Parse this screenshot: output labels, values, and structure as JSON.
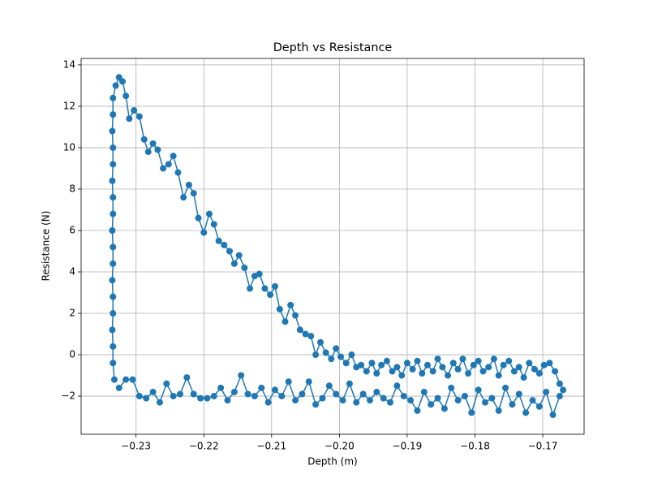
{
  "chart_data": {
    "type": "line",
    "title": "Depth vs Resistance",
    "xlabel": "Depth (m)",
    "ylabel": "Resistance (N)",
    "color": "#1f77b4",
    "grid": true,
    "markers": true,
    "xlim": [
      -0.2381,
      -0.1639
    ],
    "ylim": [
      -3.84,
      14.31
    ],
    "xticks": [
      {
        "value": -0.23,
        "label": "−0.23"
      },
      {
        "value": -0.22,
        "label": "−0.22"
      },
      {
        "value": -0.21,
        "label": "−0.21"
      },
      {
        "value": -0.2,
        "label": "−0.20"
      },
      {
        "value": -0.19,
        "label": "−0.19"
      },
      {
        "value": -0.18,
        "label": "−0.18"
      },
      {
        "value": -0.17,
        "label": "−0.17"
      }
    ],
    "yticks": [
      {
        "value": -2,
        "label": "−2"
      },
      0,
      2,
      4,
      6,
      8,
      10,
      12,
      14
    ],
    "x": [
      -0.2332,
      -0.2334,
      -0.2334,
      -0.2335,
      -0.2334,
      -0.2334,
      -0.2335,
      -0.2334,
      -0.2334,
      -0.2335,
      -0.2334,
      -0.2334,
      -0.2335,
      -0.2334,
      -0.2334,
      -0.2335,
      -0.2334,
      -0.2334,
      -0.233,
      -0.2325,
      -0.232,
      -0.2315,
      -0.231,
      -0.2303,
      -0.2295,
      -0.2288,
      -0.2282,
      -0.2275,
      -0.2268,
      -0.226,
      -0.2252,
      -0.2245,
      -0.2238,
      -0.223,
      -0.2222,
      -0.2215,
      -0.2208,
      -0.22,
      -0.2192,
      -0.2185,
      -0.2178,
      -0.217,
      -0.2162,
      -0.2155,
      -0.2148,
      -0.214,
      -0.2132,
      -0.2125,
      -0.2118,
      -0.211,
      -0.2102,
      -0.2095,
      -0.2088,
      -0.208,
      -0.2072,
      -0.2065,
      -0.2058,
      -0.205,
      -0.2042,
      -0.2035,
      -0.2028,
      -0.202,
      -0.2012,
      -0.2005,
      -0.1998,
      -0.199,
      -0.1982,
      -0.1975,
      -0.1968,
      -0.196,
      -0.1952,
      -0.1945,
      -0.1938,
      -0.193,
      -0.1922,
      -0.1915,
      -0.1908,
      -0.19,
      -0.1892,
      -0.1885,
      -0.1878,
      -0.187,
      -0.1862,
      -0.1855,
      -0.1848,
      -0.184,
      -0.1832,
      -0.1825,
      -0.1818,
      -0.181,
      -0.1802,
      -0.1795,
      -0.1788,
      -0.178,
      -0.1772,
      -0.1765,
      -0.1758,
      -0.175,
      -0.1742,
      -0.1735,
      -0.1728,
      -0.172,
      -0.1712,
      -0.1705,
      -0.1698,
      -0.169,
      -0.1682,
      -0.1675,
      -0.167,
      -0.1675,
      -0.1685,
      -0.1695,
      -0.1705,
      -0.1715,
      -0.1725,
      -0.1735,
      -0.1745,
      -0.1755,
      -0.1765,
      -0.1775,
      -0.1785,
      -0.1795,
      -0.1805,
      -0.1815,
      -0.1825,
      -0.1835,
      -0.1845,
      -0.1855,
      -0.1865,
      -0.1875,
      -0.1885,
      -0.1895,
      -0.1905,
      -0.1915,
      -0.1925,
      -0.1935,
      -0.1945,
      -0.1955,
      -0.1965,
      -0.1975,
      -0.1985,
      -0.1995,
      -0.2005,
      -0.2015,
      -0.2025,
      -0.2035,
      -0.2045,
      -0.2055,
      -0.2065,
      -0.2075,
      -0.2085,
      -0.2095,
      -0.2105,
      -0.2115,
      -0.2125,
      -0.2135,
      -0.2145,
      -0.2155,
      -0.2165,
      -0.2175,
      -0.2185,
      -0.2195,
      -0.2205,
      -0.2215,
      -0.2225,
      -0.2235,
      -0.2245,
      -0.2255,
      -0.2265,
      -0.2275,
      -0.2285,
      -0.2295,
      -0.2305,
      -0.2315,
      -0.2325
    ],
    "values": [
      -1.2,
      -0.4,
      0.4,
      1.2,
      2.0,
      2.8,
      3.6,
      4.4,
      5.2,
      6.0,
      6.8,
      7.6,
      8.4,
      9.2,
      10.0,
      10.8,
      11.6,
      12.4,
      13.0,
      13.4,
      13.2,
      12.5,
      11.4,
      11.8,
      11.5,
      10.4,
      9.8,
      10.2,
      9.9,
      9.0,
      9.2,
      9.6,
      8.8,
      7.6,
      8.2,
      7.8,
      6.6,
      5.9,
      6.8,
      6.3,
      5.5,
      5.3,
      5.0,
      4.4,
      4.8,
      4.2,
      3.2,
      3.8,
      3.9,
      3.2,
      2.9,
      3.3,
      2.2,
      1.6,
      2.4,
      1.9,
      1.2,
      1.0,
      0.9,
      0.0,
      0.6,
      0.1,
      -0.2,
      0.3,
      -0.1,
      -0.4,
      0.0,
      -0.6,
      -0.5,
      -0.8,
      -0.4,
      -0.9,
      -0.5,
      -0.3,
      -0.8,
      -0.6,
      -1.0,
      -0.4,
      -0.7,
      -0.3,
      -0.9,
      -0.5,
      -0.8,
      -0.2,
      -0.6,
      -1.0,
      -0.4,
      -0.7,
      -0.2,
      -0.9,
      -0.5,
      -0.3,
      -0.8,
      -0.6,
      -0.2,
      -1.0,
      -0.5,
      -0.3,
      -0.8,
      -0.6,
      -1.1,
      -0.4,
      -0.7,
      -0.9,
      -0.5,
      -0.4,
      -0.8,
      -1.4,
      -1.7,
      -2.0,
      -2.9,
      -1.8,
      -2.5,
      -2.2,
      -2.8,
      -1.9,
      -2.4,
      -1.6,
      -2.7,
      -2.1,
      -2.3,
      -1.7,
      -2.8,
      -2.0,
      -2.2,
      -1.6,
      -2.6,
      -2.1,
      -2.4,
      -1.8,
      -2.7,
      -2.2,
      -2.0,
      -1.5,
      -2.3,
      -2.1,
      -1.8,
      -2.2,
      -1.9,
      -2.3,
      -1.4,
      -2.2,
      -1.9,
      -1.5,
      -2.1,
      -2.4,
      -1.3,
      -1.9,
      -2.2,
      -1.3,
      -2.0,
      -1.7,
      -2.3,
      -1.6,
      -2.0,
      -1.9,
      -1.0,
      -1.8,
      -2.2,
      -1.6,
      -2.0,
      -2.1,
      -2.1,
      -1.9,
      -1.1,
      -1.9,
      -2.0,
      -1.4,
      -2.3,
      -1.8,
      -2.1,
      -2.0,
      -1.2,
      -1.2,
      -1.6
    ]
  }
}
